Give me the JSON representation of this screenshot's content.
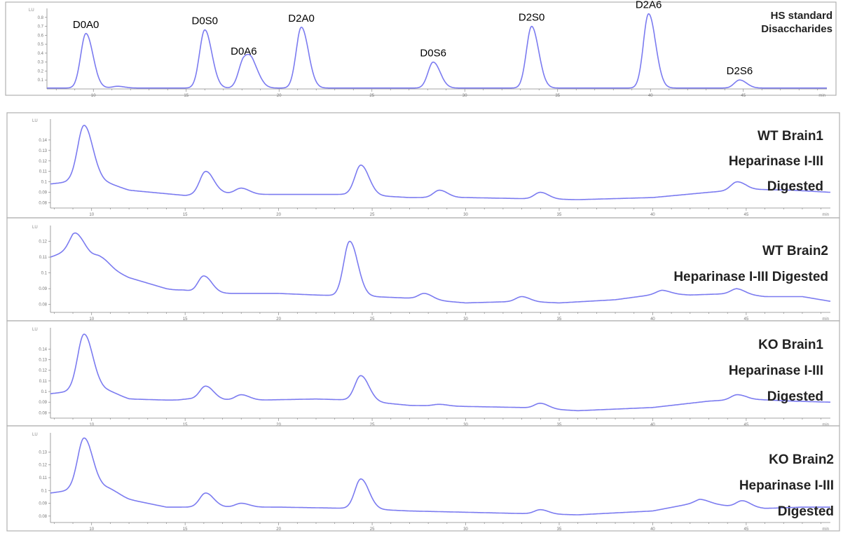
{
  "figure": {
    "standard_title": [
      "HS standard",
      "Disaccharides"
    ],
    "panel_titles": [
      [
        "WT Brain1",
        "Heparinase I-III",
        "Digested"
      ],
      [
        "WT Brain2",
        "Heparinase I-III Digested"
      ],
      [
        "KO Brain1",
        "Heparinase I-III",
        "Digested"
      ],
      [
        "KO Brain2",
        "Heparinase I-III",
        "Digested"
      ]
    ],
    "y_unit": "LU",
    "x_unit": "min"
  },
  "colors": {
    "trace": "#7b7bf0",
    "axis": "#888888",
    "frame": "#b0b0b0"
  },
  "chart_data": [
    {
      "type": "line",
      "title": "HS standard Disaccharides",
      "xlabel": "",
      "ylabel": "LU",
      "xlim": [
        7.5,
        49.5
      ],
      "ylim": [
        0,
        0.9
      ],
      "x_ticks": [
        10,
        15,
        20,
        25,
        30,
        35,
        40,
        45
      ],
      "x_tick_labels": [
        "10",
        "15",
        "20",
        "25",
        "30",
        "35",
        "40",
        "45"
      ],
      "y_ticks": [
        0.1,
        0.2,
        0.3,
        0.4,
        0.5,
        0.6,
        0.7,
        0.8
      ],
      "y_tick_labels": [
        "0.1",
        "0.2",
        "0.3",
        "0.4",
        "0.5",
        "0.6",
        "0.7",
        "0.8"
      ],
      "baseline": 0.01,
      "peaks": [
        {
          "label": "D0A0",
          "x": 9.6,
          "y": 0.62
        },
        {
          "label": "",
          "x": 11.3,
          "y": 0.03
        },
        {
          "label": "D0S0",
          "x": 16.0,
          "y": 0.66
        },
        {
          "label": "D0A6",
          "x": 18.1,
          "y": 0.32
        },
        {
          "label": "",
          "x": 18.6,
          "y": 0.2
        },
        {
          "label": "D2A0",
          "x": 21.2,
          "y": 0.69
        },
        {
          "label": "D0S6",
          "x": 28.3,
          "y": 0.3
        },
        {
          "label": "D2S0",
          "x": 33.6,
          "y": 0.7
        },
        {
          "label": "D2A6",
          "x": 39.9,
          "y": 0.84
        },
        {
          "label": "D2S6",
          "x": 44.8,
          "y": 0.1
        }
      ]
    },
    {
      "type": "line",
      "title": "WT Brain1 Heparinase I-III Digested",
      "xlabel": "",
      "ylabel": "LU",
      "xlim": [
        7.8,
        49.5
      ],
      "ylim": [
        0.075,
        0.16
      ],
      "x_ticks": [
        10,
        15,
        20,
        25,
        30,
        35,
        40,
        45
      ],
      "x_tick_labels": [
        "10",
        "15",
        "20",
        "25",
        "30",
        "35",
        "40",
        "45"
      ],
      "y_ticks": [
        0.08,
        0.09,
        0.1,
        0.11,
        0.12,
        0.13,
        0.14
      ],
      "y_tick_labels": [
        "0.08",
        "0.09",
        "0.1",
        "0.11",
        "0.12",
        "0.13",
        "0.14"
      ],
      "baseline_points": [
        [
          7.8,
          0.098
        ],
        [
          8.8,
          0.1
        ],
        [
          10.5,
          0.099
        ],
        [
          12,
          0.092
        ],
        [
          15,
          0.087
        ],
        [
          17,
          0.089
        ],
        [
          19,
          0.088
        ],
        [
          22,
          0.088
        ],
        [
          24,
          0.088
        ],
        [
          27,
          0.085
        ],
        [
          30,
          0.085
        ],
        [
          33,
          0.084
        ],
        [
          36,
          0.083
        ],
        [
          40,
          0.085
        ],
        [
          43,
          0.09
        ],
        [
          45,
          0.093
        ],
        [
          47.5,
          0.092
        ],
        [
          49.5,
          0.09
        ]
      ],
      "peaks": [
        {
          "x": 9.6,
          "y": 0.154
        },
        {
          "x": 11.0,
          "y": 0.098
        },
        {
          "x": 16.1,
          "y": 0.11
        },
        {
          "x": 18.0,
          "y": 0.094
        },
        {
          "x": 24.4,
          "y": 0.116
        },
        {
          "x": 28.6,
          "y": 0.092
        },
        {
          "x": 34.0,
          "y": 0.09
        },
        {
          "x": 44.5,
          "y": 0.1
        }
      ]
    },
    {
      "type": "line",
      "title": "WT Brain2 Heparinase I-III Digested",
      "xlabel": "",
      "ylabel": "LU",
      "xlim": [
        7.8,
        49.5
      ],
      "ylim": [
        0.075,
        0.13
      ],
      "x_ticks": [
        10,
        15,
        20,
        25,
        30,
        35,
        40,
        45
      ],
      "x_tick_labels": [
        "10",
        "15",
        "20",
        "25",
        "30",
        "35",
        "40",
        "45"
      ],
      "y_ticks": [
        0.08,
        0.09,
        0.1,
        0.11,
        0.12
      ],
      "y_tick_labels": [
        "0.08",
        "0.09",
        "0.1",
        "0.11",
        "0.12"
      ],
      "baseline_points": [
        [
          7.8,
          0.11
        ],
        [
          9.0,
          0.115
        ],
        [
          10.5,
          0.105
        ],
        [
          12,
          0.097
        ],
        [
          14,
          0.09
        ],
        [
          15.5,
          0.087
        ],
        [
          17,
          0.087
        ],
        [
          20,
          0.087
        ],
        [
          22,
          0.086
        ],
        [
          25,
          0.085
        ],
        [
          27,
          0.084
        ],
        [
          30,
          0.081
        ],
        [
          33,
          0.082
        ],
        [
          35,
          0.081
        ],
        [
          38,
          0.083
        ],
        [
          40.5,
          0.087
        ],
        [
          42,
          0.086
        ],
        [
          44.5,
          0.087
        ],
        [
          46,
          0.085
        ],
        [
          48,
          0.085
        ],
        [
          49.5,
          0.082
        ]
      ],
      "peaks": [
        {
          "x": 9.2,
          "y": 0.125
        },
        {
          "x": 10.5,
          "y": 0.11
        },
        {
          "x": 15.0,
          "y": 0.089
        },
        {
          "x": 16.0,
          "y": 0.098
        },
        {
          "x": 23.8,
          "y": 0.12
        },
        {
          "x": 27.8,
          "y": 0.087
        },
        {
          "x": 33.0,
          "y": 0.085
        },
        {
          "x": 40.5,
          "y": 0.089
        },
        {
          "x": 44.5,
          "y": 0.09
        }
      ]
    },
    {
      "type": "line",
      "title": "KO Brain1 Heparinase I-III Digested",
      "xlabel": "",
      "ylabel": "LU",
      "xlim": [
        7.8,
        49.5
      ],
      "ylim": [
        0.075,
        0.16
      ],
      "x_ticks": [
        10,
        15,
        20,
        25,
        30,
        35,
        40,
        45
      ],
      "x_tick_labels": [
        "10",
        "15",
        "20",
        "25",
        "30",
        "35",
        "40",
        "45"
      ],
      "y_ticks": [
        0.08,
        0.09,
        0.1,
        0.11,
        0.12,
        0.13,
        0.14
      ],
      "y_tick_labels": [
        "0.08",
        "0.09",
        "0.1",
        "0.11",
        "0.12",
        "0.13",
        "0.14"
      ],
      "baseline_points": [
        [
          7.8,
          0.098
        ],
        [
          8.8,
          0.1
        ],
        [
          10.5,
          0.1
        ],
        [
          12,
          0.093
        ],
        [
          14,
          0.092
        ],
        [
          17,
          0.092
        ],
        [
          19,
          0.092
        ],
        [
          22,
          0.093
        ],
        [
          24,
          0.092
        ],
        [
          27,
          0.087
        ],
        [
          30,
          0.086
        ],
        [
          33,
          0.085
        ],
        [
          36,
          0.082
        ],
        [
          40,
          0.085
        ],
        [
          43,
          0.091
        ],
        [
          45,
          0.093
        ],
        [
          47.5,
          0.091
        ],
        [
          49.5,
          0.09
        ]
      ],
      "peaks": [
        {
          "x": 9.6,
          "y": 0.154
        },
        {
          "x": 11.0,
          "y": 0.1
        },
        {
          "x": 15.2,
          "y": 0.093
        },
        {
          "x": 16.1,
          "y": 0.105
        },
        {
          "x": 18.0,
          "y": 0.097
        },
        {
          "x": 24.4,
          "y": 0.115
        },
        {
          "x": 28.6,
          "y": 0.088
        },
        {
          "x": 34.0,
          "y": 0.089
        },
        {
          "x": 44.5,
          "y": 0.097
        }
      ]
    },
    {
      "type": "line",
      "title": "KO Brain2 Heparinase I-III Digested",
      "xlabel": "",
      "ylabel": "LU",
      "xlim": [
        7.8,
        49.5
      ],
      "ylim": [
        0.075,
        0.145
      ],
      "x_ticks": [
        10,
        15,
        20,
        25,
        30,
        35,
        40,
        45
      ],
      "x_tick_labels": [
        "10",
        "15",
        "20",
        "25",
        "30",
        "35",
        "40",
        "45"
      ],
      "y_ticks": [
        0.08,
        0.09,
        0.1,
        0.11,
        0.12,
        0.13
      ],
      "y_tick_labels": [
        "0.08",
        "0.09",
        "0.1",
        "0.11",
        "0.12",
        "0.13"
      ],
      "baseline_points": [
        [
          7.8,
          0.098
        ],
        [
          8.8,
          0.1
        ],
        [
          10.5,
          0.1
        ],
        [
          12,
          0.093
        ],
        [
          14,
          0.087
        ],
        [
          17,
          0.087
        ],
        [
          20,
          0.087
        ],
        [
          24,
          0.086
        ],
        [
          27,
          0.084
        ],
        [
          30,
          0.083
        ],
        [
          33,
          0.082
        ],
        [
          36,
          0.081
        ],
        [
          40,
          0.084
        ],
        [
          42.5,
          0.091
        ],
        [
          44,
          0.088
        ],
        [
          46,
          0.086
        ],
        [
          48,
          0.087
        ],
        [
          49.5,
          0.087
        ]
      ],
      "peaks": [
        {
          "x": 9.6,
          "y": 0.141
        },
        {
          "x": 11.0,
          "y": 0.101
        },
        {
          "x": 16.1,
          "y": 0.098
        },
        {
          "x": 18.0,
          "y": 0.09
        },
        {
          "x": 24.4,
          "y": 0.109
        },
        {
          "x": 34.0,
          "y": 0.085
        },
        {
          "x": 42.6,
          "y": 0.093
        },
        {
          "x": 44.8,
          "y": 0.092
        }
      ]
    }
  ]
}
